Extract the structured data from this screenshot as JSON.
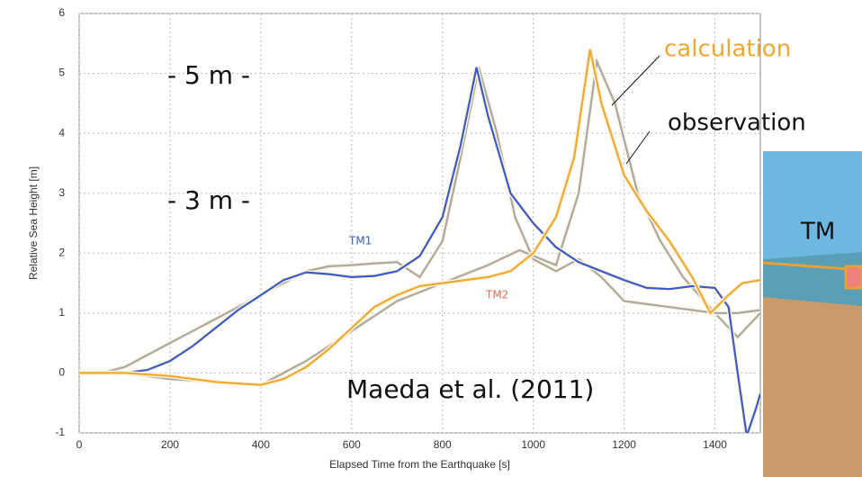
{
  "chart_data": {
    "type": "line",
    "xlabel": "Elapsed Time from the Earthquake [s]",
    "ylabel": "Relative Sea Height [m]",
    "xlim": [
      0,
      1500
    ],
    "ylim": [
      -1,
      6
    ],
    "xticks": [
      0,
      200,
      400,
      600,
      800,
      1000,
      1200,
      1400
    ],
    "yticks": [
      -1,
      0,
      1,
      2,
      3,
      4,
      5,
      6
    ],
    "grid": true,
    "series": [
      {
        "color": "#a8a8a8",
        "x": [
          0,
          50,
          100,
          150,
          200,
          250,
          300,
          350,
          400,
          450,
          500,
          550,
          600,
          650,
          700,
          750,
          800,
          840,
          880,
          920,
          960,
          1000,
          1050,
          1100,
          1150,
          1200,
          1250,
          1300,
          1350,
          1400,
          1450,
          1500
        ],
        "values": [
          0,
          0,
          0.1,
          0.3,
          0.5,
          0.7,
          0.9,
          1.1,
          1.3,
          1.5,
          1.7,
          1.78,
          1.8,
          1.83,
          1.85,
          1.6,
          2.2,
          3.6,
          5.1,
          4.0,
          2.6,
          1.9,
          1.7,
          1.9,
          1.6,
          1.2,
          1.15,
          1.1,
          1.05,
          1.0,
          0.6,
          1.0
        ]
      },
      {
        "color": "#a8a8a8",
        "x": [
          0,
          100,
          200,
          300,
          400,
          450,
          500,
          550,
          600,
          650,
          700,
          750,
          800,
          850,
          900,
          970,
          1050,
          1100,
          1140,
          1180,
          1230,
          1280,
          1330,
          1400,
          1450,
          1500
        ],
        "values": [
          0,
          0,
          -0.1,
          -0.15,
          -0.2,
          0.0,
          0.2,
          0.45,
          0.7,
          0.95,
          1.2,
          1.35,
          1.5,
          1.65,
          1.8,
          2.05,
          1.8,
          3.0,
          5.2,
          4.5,
          3.0,
          2.2,
          1.6,
          1.0,
          1.0,
          1.05
        ]
      },
      {
        "color": "#3a5bc7",
        "x": [
          0,
          100,
          150,
          200,
          250,
          300,
          350,
          400,
          450,
          500,
          550,
          600,
          650,
          700,
          750,
          800,
          840,
          875,
          900,
          950,
          1000,
          1050,
          1100,
          1150,
          1200,
          1250,
          1300,
          1350,
          1400,
          1430,
          1450,
          1470,
          1490,
          1500
        ],
        "values": [
          0,
          0,
          0.05,
          0.2,
          0.45,
          0.75,
          1.05,
          1.3,
          1.55,
          1.68,
          1.65,
          1.6,
          1.62,
          1.7,
          1.95,
          2.6,
          3.8,
          5.1,
          4.3,
          3.0,
          2.5,
          2.1,
          1.85,
          1.7,
          1.55,
          1.42,
          1.4,
          1.45,
          1.42,
          1.1,
          0,
          -1.05,
          -0.6,
          -0.35
        ]
      },
      {
        "color": "#f0a830",
        "x": [
          0,
          100,
          200,
          300,
          400,
          450,
          500,
          550,
          600,
          650,
          700,
          750,
          800,
          850,
          900,
          950,
          1000,
          1050,
          1090,
          1125,
          1150,
          1200,
          1250,
          1300,
          1350,
          1390,
          1430,
          1460,
          1500
        ],
        "values": [
          0,
          0,
          -0.05,
          -0.15,
          -0.2,
          -0.1,
          0.1,
          0.4,
          0.75,
          1.1,
          1.3,
          1.45,
          1.5,
          1.55,
          1.6,
          1.7,
          2.0,
          2.6,
          3.6,
          5.4,
          4.5,
          3.3,
          2.7,
          2.2,
          1.6,
          1.0,
          1.3,
          1.5,
          1.55
        ]
      }
    ],
    "annotations": [
      "- 5 m -",
      "- 3 m -",
      "calculation",
      "observation",
      "Maeda et al. (2011)",
      "TM1",
      "TM2",
      "TM"
    ]
  }
}
